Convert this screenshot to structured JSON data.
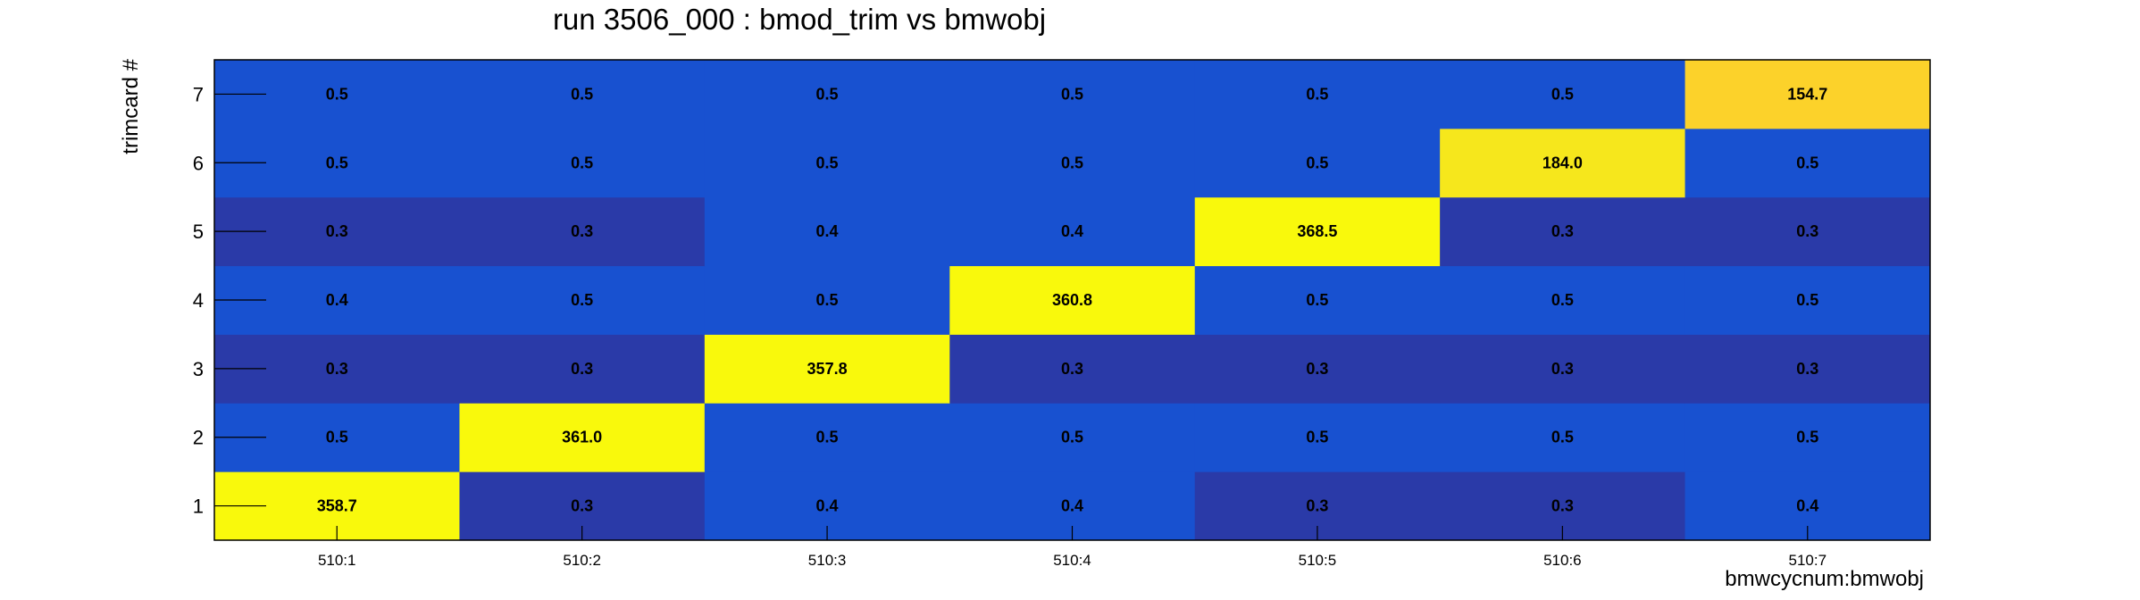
{
  "chart_data": {
    "type": "heatmap",
    "title": "run 3506_000 : bmod_trim vs bmwobj",
    "xlabel": "bmwcycnum:bmwobj",
    "ylabel": "trimcard #",
    "x_categories": [
      "510:1",
      "510:2",
      "510:3",
      "510:4",
      "510:5",
      "510:6",
      "510:7"
    ],
    "y_categories": [
      "1",
      "2",
      "3",
      "4",
      "5",
      "6",
      "7"
    ],
    "values": [
      [
        358.7,
        0.3,
        0.4,
        0.4,
        0.3,
        0.3,
        0.4
      ],
      [
        0.5,
        361.0,
        0.5,
        0.5,
        0.5,
        0.5,
        0.5
      ],
      [
        0.3,
        0.3,
        357.8,
        0.3,
        0.3,
        0.3,
        0.3
      ],
      [
        0.4,
        0.5,
        0.5,
        360.8,
        0.5,
        0.5,
        0.5
      ],
      [
        0.3,
        0.3,
        0.4,
        0.4,
        368.5,
        0.3,
        0.3
      ],
      [
        0.5,
        0.5,
        0.5,
        0.5,
        0.5,
        184.0,
        0.5
      ],
      [
        0.5,
        0.5,
        0.5,
        0.5,
        0.5,
        0.5,
        154.7
      ]
    ],
    "value_labels": [
      [
        "358.7",
        "0.3",
        "0.4",
        "0.4",
        "0.3",
        "0.3",
        "0.4"
      ],
      [
        "0.5",
        "361.0",
        "0.5",
        "0.5",
        "0.5",
        "0.5",
        "0.5"
      ],
      [
        "0.3",
        "0.3",
        "357.8",
        "0.3",
        "0.3",
        "0.3",
        "0.3"
      ],
      [
        "0.4",
        "0.5",
        "0.5",
        "360.8",
        "0.5",
        "0.5",
        "0.5"
      ],
      [
        "0.3",
        "0.3",
        "0.4",
        "0.4",
        "368.5",
        "0.3",
        "0.3"
      ],
      [
        "0.5",
        "0.5",
        "0.5",
        "0.5",
        "0.5",
        "184.0",
        "0.5"
      ],
      [
        "0.5",
        "0.5",
        "0.5",
        "0.5",
        "0.5",
        "0.5",
        "154.7"
      ]
    ],
    "colors": {
      "low_dark": "#2a3aa8",
      "low": "#1851d0",
      "mid_high": "#fcd22a",
      "high_mid": "#f6e71c",
      "high": "#f9f90c"
    },
    "grid": false,
    "legend": "none"
  }
}
